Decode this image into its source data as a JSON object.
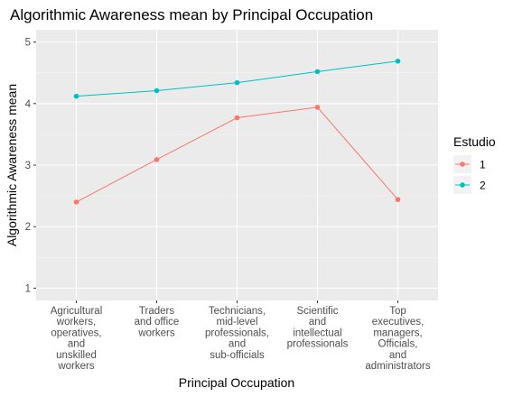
{
  "chart_data": {
    "type": "line",
    "title": "Algorithmic Awareness mean by Principal Occupation",
    "xlabel": "Principal Occupation",
    "ylabel": "Algorithmic Awareness mean",
    "categories": [
      [
        "Agricultural",
        "workers,",
        "operatives,",
        "and",
        "unskilled",
        "workers"
      ],
      [
        "Traders",
        "and office",
        "workers"
      ],
      [
        "Technicians,",
        "mid-level",
        "professionals,",
        "and",
        "sub-officials"
      ],
      [
        "Scientific",
        "and",
        "intellectual",
        "professionals"
      ],
      [
        "Top",
        "executives,",
        "managers,",
        "Officials,",
        "and",
        "administrators"
      ]
    ],
    "ylim": [
      0.8,
      5.2
    ],
    "yticks": [
      1,
      2,
      3,
      4,
      5
    ],
    "grid": true,
    "legend": {
      "title": "Estudio",
      "placement": "right"
    },
    "series": [
      {
        "name": "1",
        "color": "#f8766d",
        "values": [
          2.4,
          3.09,
          3.77,
          3.94,
          2.44
        ]
      },
      {
        "name": "2",
        "color": "#00bfc4",
        "values": [
          4.12,
          4.21,
          4.34,
          4.52,
          4.69
        ]
      }
    ]
  }
}
